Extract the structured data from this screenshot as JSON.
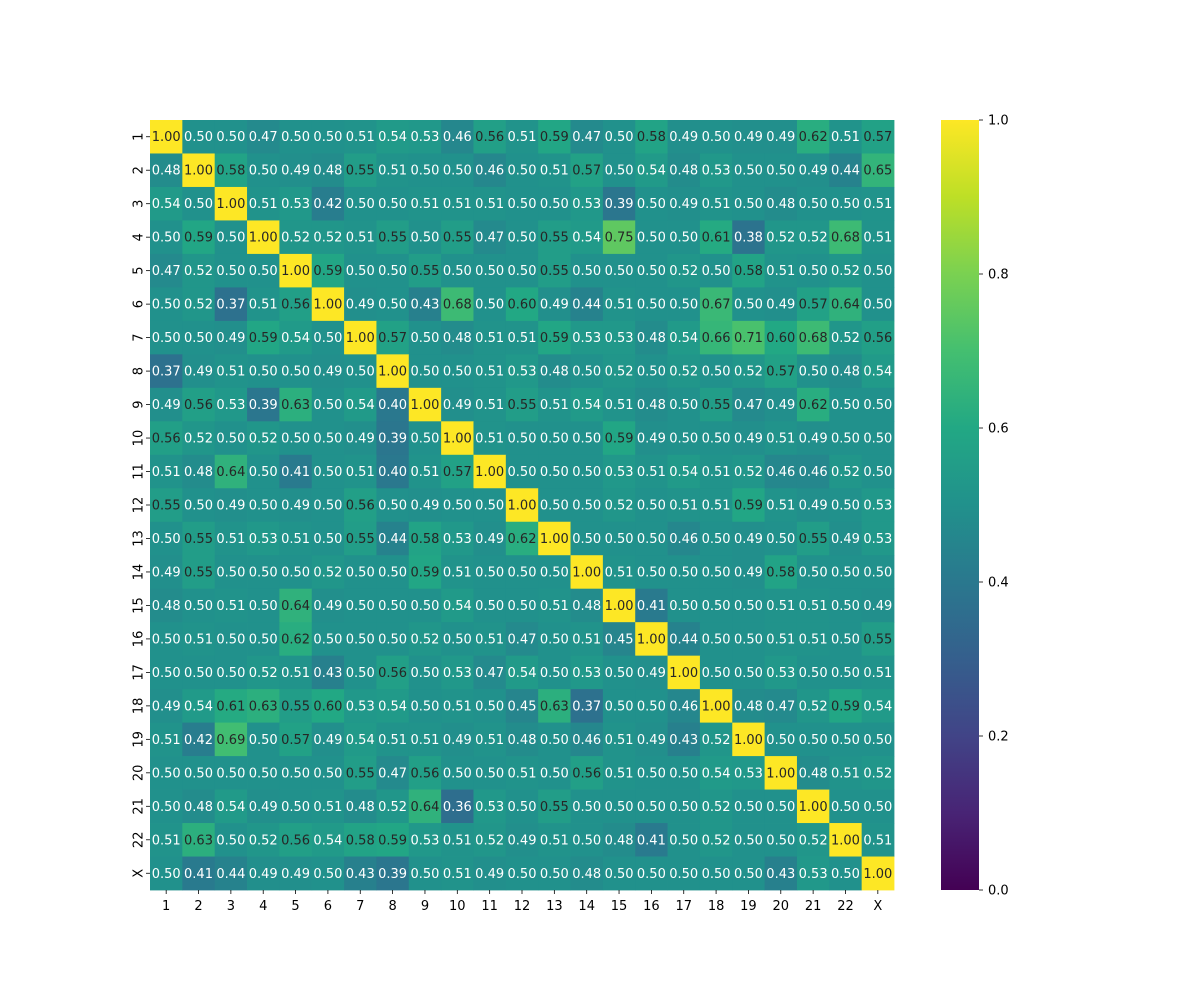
{
  "chart_data": {
    "type": "heatmap",
    "title": "",
    "xlabel": "",
    "ylabel": "",
    "x_labels": [
      "1",
      "2",
      "3",
      "4",
      "5",
      "6",
      "7",
      "8",
      "9",
      "10",
      "11",
      "12",
      "13",
      "14",
      "15",
      "16",
      "17",
      "18",
      "19",
      "20",
      "21",
      "22",
      "X"
    ],
    "y_labels": [
      "1",
      "2",
      "3",
      "4",
      "5",
      "6",
      "7",
      "8",
      "9",
      "10",
      "11",
      "12",
      "13",
      "14",
      "15",
      "16",
      "17",
      "18",
      "19",
      "20",
      "21",
      "22",
      "X"
    ],
    "values": [
      [
        1.0,
        0.5,
        0.5,
        0.47,
        0.5,
        0.5,
        0.51,
        0.54,
        0.53,
        0.46,
        0.56,
        0.51,
        0.59,
        0.47,
        0.5,
        0.58,
        0.49,
        0.5,
        0.49,
        0.49,
        0.62,
        0.51,
        0.57
      ],
      [
        0.48,
        1.0,
        0.58,
        0.5,
        0.49,
        0.48,
        0.55,
        0.51,
        0.5,
        0.5,
        0.46,
        0.5,
        0.51,
        0.57,
        0.5,
        0.54,
        0.48,
        0.53,
        0.5,
        0.5,
        0.49,
        0.44,
        0.65
      ],
      [
        0.54,
        0.5,
        1.0,
        0.51,
        0.53,
        0.42,
        0.5,
        0.5,
        0.51,
        0.51,
        0.51,
        0.5,
        0.5,
        0.53,
        0.39,
        0.5,
        0.49,
        0.51,
        0.5,
        0.48,
        0.5,
        0.5,
        0.51
      ],
      [
        0.5,
        0.59,
        0.5,
        1.0,
        0.52,
        0.52,
        0.51,
        0.55,
        0.5,
        0.55,
        0.47,
        0.5,
        0.55,
        0.54,
        0.75,
        0.5,
        0.5,
        0.61,
        0.38,
        0.52,
        0.52,
        0.68,
        0.51
      ],
      [
        0.47,
        0.52,
        0.5,
        0.5,
        1.0,
        0.59,
        0.5,
        0.5,
        0.55,
        0.5,
        0.5,
        0.5,
        0.55,
        0.5,
        0.5,
        0.5,
        0.52,
        0.5,
        0.58,
        0.51,
        0.5,
        0.52,
        0.5
      ],
      [
        0.5,
        0.52,
        0.37,
        0.51,
        0.56,
        1.0,
        0.49,
        0.5,
        0.43,
        0.68,
        0.5,
        0.6,
        0.49,
        0.44,
        0.51,
        0.5,
        0.5,
        0.67,
        0.5,
        0.49,
        0.57,
        0.64,
        0.5
      ],
      [
        0.5,
        0.5,
        0.49,
        0.59,
        0.54,
        0.5,
        1.0,
        0.57,
        0.5,
        0.48,
        0.51,
        0.51,
        0.59,
        0.53,
        0.53,
        0.48,
        0.54,
        0.66,
        0.71,
        0.6,
        0.68,
        0.52,
        0.56
      ],
      [
        0.37,
        0.49,
        0.51,
        0.5,
        0.5,
        0.49,
        0.5,
        1.0,
        0.5,
        0.5,
        0.51,
        0.53,
        0.48,
        0.5,
        0.52,
        0.5,
        0.52,
        0.5,
        0.52,
        0.57,
        0.5,
        0.48,
        0.54
      ],
      [
        0.49,
        0.56,
        0.53,
        0.39,
        0.63,
        0.5,
        0.54,
        0.4,
        1.0,
        0.49,
        0.51,
        0.55,
        0.51,
        0.54,
        0.51,
        0.48,
        0.5,
        0.55,
        0.47,
        0.49,
        0.62,
        0.5,
        0.5
      ],
      [
        0.56,
        0.52,
        0.5,
        0.52,
        0.5,
        0.5,
        0.49,
        0.39,
        0.5,
        1.0,
        0.51,
        0.5,
        0.5,
        0.5,
        0.59,
        0.49,
        0.5,
        0.5,
        0.49,
        0.51,
        0.49,
        0.5,
        0.5
      ],
      [
        0.51,
        0.48,
        0.64,
        0.5,
        0.41,
        0.5,
        0.51,
        0.4,
        0.51,
        0.57,
        1.0,
        0.5,
        0.5,
        0.5,
        0.53,
        0.51,
        0.54,
        0.51,
        0.52,
        0.46,
        0.46,
        0.52,
        0.5
      ],
      [
        0.55,
        0.5,
        0.49,
        0.5,
        0.49,
        0.5,
        0.56,
        0.5,
        0.49,
        0.5,
        0.5,
        1.0,
        0.5,
        0.5,
        0.52,
        0.5,
        0.51,
        0.51,
        0.59,
        0.51,
        0.49,
        0.5,
        0.53
      ],
      [
        0.5,
        0.55,
        0.51,
        0.53,
        0.51,
        0.5,
        0.55,
        0.44,
        0.58,
        0.53,
        0.49,
        0.62,
        1.0,
        0.5,
        0.5,
        0.5,
        0.46,
        0.5,
        0.49,
        0.5,
        0.55,
        0.49,
        0.53
      ],
      [
        0.49,
        0.55,
        0.5,
        0.5,
        0.5,
        0.52,
        0.5,
        0.5,
        0.59,
        0.51,
        0.5,
        0.5,
        0.5,
        1.0,
        0.51,
        0.5,
        0.5,
        0.5,
        0.49,
        0.58,
        0.5,
        0.5,
        0.5
      ],
      [
        0.48,
        0.5,
        0.51,
        0.5,
        0.64,
        0.49,
        0.5,
        0.5,
        0.5,
        0.54,
        0.5,
        0.5,
        0.51,
        0.48,
        1.0,
        0.41,
        0.5,
        0.5,
        0.5,
        0.51,
        0.51,
        0.5,
        0.49
      ],
      [
        0.5,
        0.51,
        0.5,
        0.5,
        0.62,
        0.5,
        0.5,
        0.5,
        0.52,
        0.5,
        0.51,
        0.47,
        0.5,
        0.51,
        0.45,
        1.0,
        0.44,
        0.5,
        0.5,
        0.51,
        0.51,
        0.5,
        0.55
      ],
      [
        0.5,
        0.5,
        0.5,
        0.52,
        0.51,
        0.43,
        0.5,
        0.56,
        0.5,
        0.53,
        0.47,
        0.54,
        0.5,
        0.53,
        0.5,
        0.49,
        1.0,
        0.5,
        0.5,
        0.53,
        0.5,
        0.5,
        0.51
      ],
      [
        0.49,
        0.54,
        0.61,
        0.63,
        0.55,
        0.6,
        0.53,
        0.54,
        0.5,
        0.51,
        0.5,
        0.45,
        0.63,
        0.37,
        0.5,
        0.5,
        0.46,
        1.0,
        0.48,
        0.47,
        0.52,
        0.59,
        0.54
      ],
      [
        0.51,
        0.42,
        0.69,
        0.5,
        0.57,
        0.49,
        0.54,
        0.51,
        0.51,
        0.49,
        0.51,
        0.48,
        0.5,
        0.46,
        0.51,
        0.49,
        0.43,
        0.52,
        1.0,
        0.5,
        0.5,
        0.5,
        0.5
      ],
      [
        0.5,
        0.5,
        0.5,
        0.5,
        0.5,
        0.5,
        0.55,
        0.47,
        0.56,
        0.5,
        0.5,
        0.51,
        0.5,
        0.56,
        0.51,
        0.5,
        0.5,
        0.54,
        0.53,
        1.0,
        0.48,
        0.51,
        0.52
      ],
      [
        0.5,
        0.48,
        0.54,
        0.49,
        0.5,
        0.51,
        0.48,
        0.52,
        0.64,
        0.36,
        0.53,
        0.5,
        0.55,
        0.5,
        0.5,
        0.5,
        0.5,
        0.52,
        0.5,
        0.5,
        1.0,
        0.5,
        0.5
      ],
      [
        0.51,
        0.63,
        0.5,
        0.52,
        0.56,
        0.54,
        0.58,
        0.59,
        0.53,
        0.51,
        0.52,
        0.49,
        0.51,
        0.5,
        0.48,
        0.41,
        0.5,
        0.52,
        0.5,
        0.5,
        0.52,
        1.0,
        0.51
      ],
      [
        0.5,
        0.41,
        0.44,
        0.49,
        0.49,
        0.5,
        0.43,
        0.39,
        0.5,
        0.51,
        0.49,
        0.5,
        0.5,
        0.48,
        0.5,
        0.5,
        0.5,
        0.5,
        0.5,
        0.43,
        0.53,
        0.5,
        1.0
      ]
    ],
    "vmin": 0.0,
    "vmax": 1.0,
    "colormap": "viridis",
    "annotation_format": "2 decimals",
    "colorbar": {
      "ticks": [
        0.0,
        0.2,
        0.4,
        0.6,
        0.8,
        1.0
      ],
      "tick_labels": [
        "0.0",
        "0.2",
        "0.4",
        "0.6",
        "0.8",
        "1.0"
      ]
    },
    "grid": false,
    "legend": "colorbar-right"
  }
}
